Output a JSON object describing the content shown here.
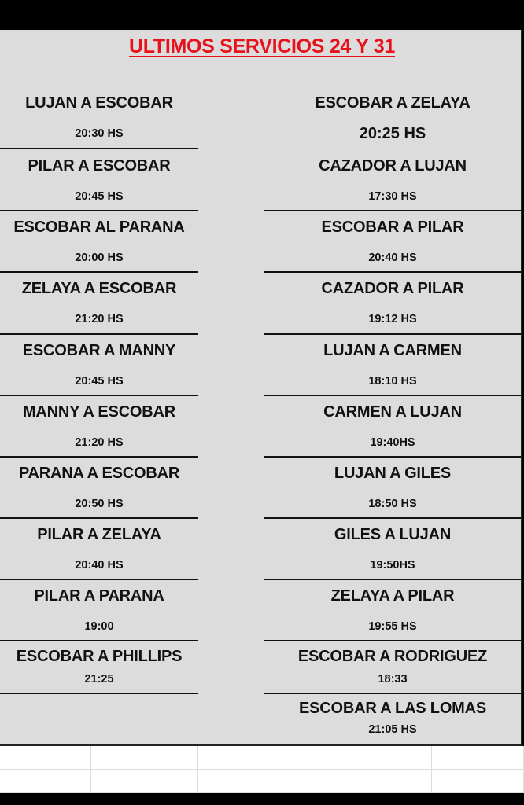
{
  "title": "ULTIMOS SERVICIOS  24 Y 31",
  "colors": {
    "title": "#e8101a",
    "sheet_background": "#dcdcdc"
  },
  "left_column": [
    {
      "route": "LUJAN A ESCOBAR",
      "time": "20:30 HS"
    },
    {
      "route": "PILAR A ESCOBAR",
      "time": "20:45 HS"
    },
    {
      "route": "ESCOBAR AL PARANA",
      "time": "20:00 HS"
    },
    {
      "route": "ZELAYA A ESCOBAR",
      "time": "21:20 HS"
    },
    {
      "route": "ESCOBAR A MANNY",
      "time": "20:45 HS"
    },
    {
      "route": "MANNY A ESCOBAR",
      "time": "21:20 HS"
    },
    {
      "route": "PARANA A ESCOBAR",
      "time": "20:50 HS"
    },
    {
      "route": "PILAR A ZELAYA",
      "time": "20:40 HS"
    },
    {
      "route": "PILAR A PARANA",
      "time": "19:00"
    },
    {
      "route": "ESCOBAR A PHILLIPS",
      "time": "21:25"
    }
  ],
  "right_column": [
    {
      "route": "ESCOBAR A ZELAYA",
      "time": "20:25 HS"
    },
    {
      "route": "CAZADOR A LUJAN",
      "time": "17:30 HS"
    },
    {
      "route": "ESCOBAR A PILAR",
      "time": "20:40 HS"
    },
    {
      "route": "CAZADOR A PILAR",
      "time": "19:12 HS"
    },
    {
      "route": "LUJAN A CARMEN",
      "time": "18:10 HS"
    },
    {
      "route": "CARMEN A LUJAN",
      "time": "19:40HS"
    },
    {
      "route": "LUJAN A GILES",
      "time": "18:50 HS"
    },
    {
      "route": "GILES A LUJAN",
      "time": "19:50HS"
    },
    {
      "route": "ZELAYA A PILAR",
      "time": "19:55 HS"
    },
    {
      "route": "ESCOBAR A RODRIGUEZ",
      "time": "18:33"
    },
    {
      "route": "ESCOBAR A LAS LOMAS",
      "time": "21:05 HS"
    }
  ]
}
